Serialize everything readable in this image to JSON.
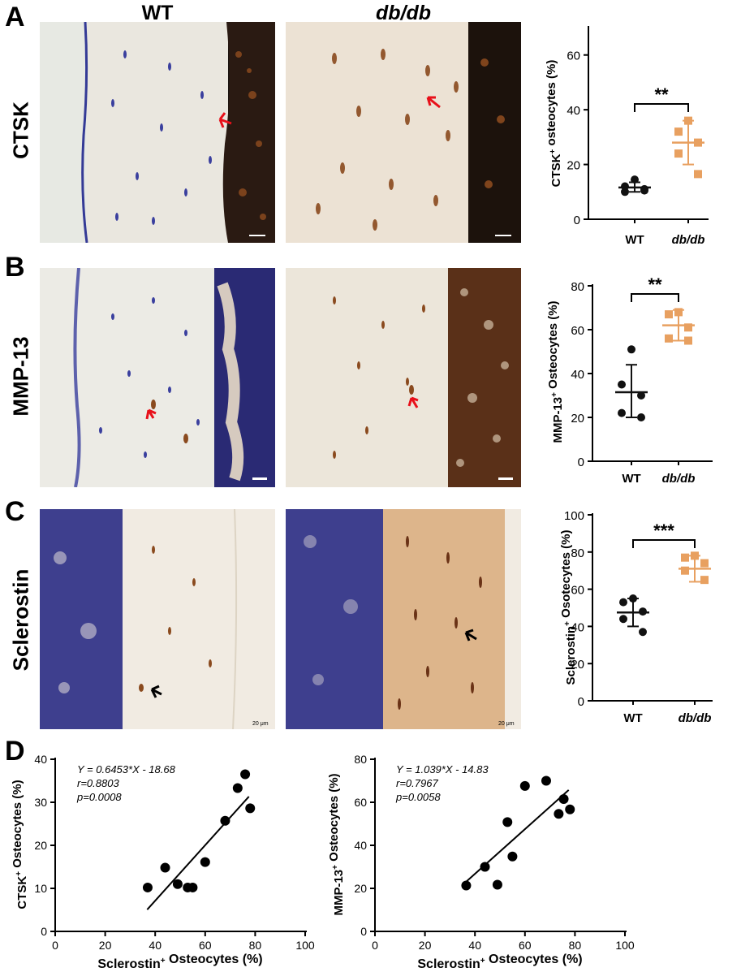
{
  "panels": {
    "A": {
      "letter": "A",
      "row_label": "CTSK"
    },
    "B": {
      "letter": "B",
      "row_label": "MMP-13"
    },
    "C": {
      "letter": "C",
      "row_label": "Sclerostin",
      "scale_bar": "20 μm"
    },
    "D": {
      "letter": "D"
    }
  },
  "columns": {
    "wt": "WT",
    "dbdb": "db/db"
  },
  "colors": {
    "wt": "#111111",
    "dbdb": "#e8a060",
    "stain_blue": "#3a3f9e",
    "stain_brown": "#8a4a1e",
    "arrow_red": "#e8101a"
  },
  "chart_data": [
    {
      "id": "A-dot",
      "type": "scatter",
      "ylabel": "CTSK⁺ osteocytes (%)",
      "categories": [
        "WT",
        "db/db"
      ],
      "ylim": [
        0,
        70
      ],
      "yticks": [
        0,
        20,
        40,
        60
      ],
      "significance": "**",
      "series": [
        {
          "category": "WT",
          "values": [
            14.5,
            12,
            11,
            10,
            10.5
          ],
          "mean": 11.6,
          "sd_low": 10,
          "sd_high": 13.5
        },
        {
          "category": "db/db",
          "values": [
            36,
            32,
            28,
            24,
            16.5
          ],
          "mean": 28,
          "sd_low": 20,
          "sd_high": 36
        }
      ]
    },
    {
      "id": "B-dot",
      "type": "scatter",
      "ylabel": "MMP-13⁺ Osteocytes (%)",
      "categories": [
        "WT",
        "db/db"
      ],
      "ylim": [
        0,
        80
      ],
      "yticks": [
        0,
        20,
        40,
        60,
        80
      ],
      "significance": "**",
      "series": [
        {
          "category": "WT",
          "values": [
            51,
            35,
            30,
            22,
            20
          ],
          "mean": 31.5,
          "sd_low": 20,
          "sd_high": 44
        },
        {
          "category": "db/db",
          "values": [
            68,
            67,
            61,
            56,
            55
          ],
          "mean": 62,
          "sd_low": 55,
          "sd_high": 69
        }
      ]
    },
    {
      "id": "C-dot",
      "type": "scatter",
      "ylabel": "Sclerostin⁺ Osotecytes (%)",
      "categories": [
        "WT",
        "db/db"
      ],
      "ylim": [
        0,
        100
      ],
      "yticks": [
        0,
        20,
        40,
        60,
        80,
        100
      ],
      "significance": "***",
      "series": [
        {
          "category": "WT",
          "values": [
            55,
            53,
            48,
            44,
            37
          ],
          "mean": 47.5,
          "sd_low": 40,
          "sd_high": 55
        },
        {
          "category": "db/db",
          "values": [
            78,
            77,
            74,
            70,
            65
          ],
          "mean": 71,
          "sd_low": 64,
          "sd_high": 78
        }
      ]
    },
    {
      "id": "D-left",
      "type": "scatter",
      "xlabel": "Sclerostin⁺ Osteocytes (%)",
      "ylabel": "CTSK⁺ Osteocytes (%)",
      "xlim": [
        0,
        100
      ],
      "ylim": [
        0,
        40
      ],
      "xticks": [
        0,
        20,
        40,
        60,
        80,
        100
      ],
      "yticks": [
        0,
        10,
        20,
        30,
        40
      ],
      "annotations": [
        "Y = 0.6453*X - 18.68",
        "r=0.8803",
        "p=0.0008"
      ],
      "fit": {
        "slope": 0.6453,
        "intercept": -18.68,
        "x_range": [
          36.8,
          77.5
        ]
      },
      "points": [
        [
          37,
          10.2
        ],
        [
          44,
          14.8
        ],
        [
          49,
          11
        ],
        [
          53,
          10.2
        ],
        [
          55,
          10.2
        ],
        [
          60,
          16.1
        ],
        [
          68,
          25.7
        ],
        [
          73,
          33.3
        ],
        [
          76,
          36.5
        ],
        [
          78,
          28.6
        ]
      ]
    },
    {
      "id": "D-right",
      "type": "scatter",
      "xlabel": "Sclerostin⁺ Osteocytes (%)",
      "ylabel": "MMP-13⁺ Osteocytes (%)",
      "xlim": [
        0,
        100
      ],
      "ylim": [
        0,
        80
      ],
      "xticks": [
        0,
        20,
        40,
        60,
        80,
        100
      ],
      "yticks": [
        0,
        20,
        40,
        60,
        80
      ],
      "annotations": [
        "Y = 1.039*X - 14.83",
        "r=0.7967",
        "p=0.0058"
      ],
      "fit": {
        "slope": 1.039,
        "intercept": -14.83,
        "x_range": [
          35.5,
          77.5
        ]
      },
      "points": [
        [
          36.5,
          21.3
        ],
        [
          44,
          30
        ],
        [
          49,
          21.7
        ],
        [
          53,
          50.8
        ],
        [
          55,
          34.8
        ],
        [
          60,
          67.6
        ],
        [
          68.5,
          70
        ],
        [
          73.5,
          54.6
        ],
        [
          75.5,
          61.5
        ],
        [
          78,
          56.7
        ]
      ]
    }
  ]
}
